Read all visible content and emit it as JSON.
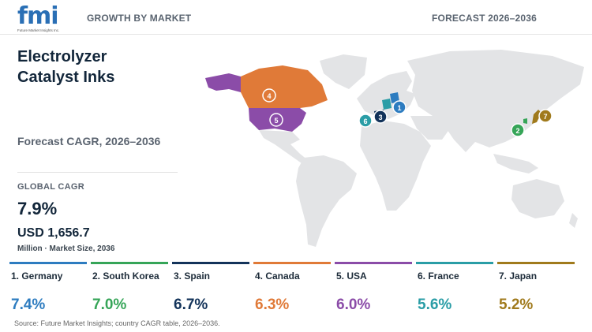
{
  "header": {
    "brand": "fmi",
    "brand_tagline": "Future Market Insights Inc.",
    "left_label": "GROWTH BY MARKET",
    "right_label": "FORECAST 2026–2036"
  },
  "panel": {
    "title_line1": "Electrolyzer",
    "title_line2": "Catalyst Inks",
    "subtitle": "Forecast CAGR, 2026–2036",
    "global_cagr_label": "GLOBAL CAGR",
    "global_cagr_value": "7.9%",
    "market_size_value": "USD 1,656.7",
    "market_size_label": "Million · Market Size, 2036"
  },
  "countries": [
    {
      "rank": "1",
      "name": "1. Germany",
      "cagr": "7.4%",
      "color": "#2d7cc0"
    },
    {
      "rank": "2",
      "name": "2. South Korea",
      "cagr": "7.0%",
      "color": "#36a558"
    },
    {
      "rank": "3",
      "name": "3. Spain",
      "cagr": "6.7%",
      "color": "#13335a"
    },
    {
      "rank": "4",
      "name": "4. Canada",
      "cagr": "6.3%",
      "color": "#e07a38"
    },
    {
      "rank": "5",
      "name": "5. USA",
      "cagr": "6.0%",
      "color": "#8b4ca8"
    },
    {
      "rank": "6",
      "name": "6. France",
      "cagr": "5.6%",
      "color": "#2a9da6"
    },
    {
      "rank": "7",
      "name": "7. Japan",
      "cagr": "5.2%",
      "color": "#a07a1c"
    }
  ],
  "source": "Source: Future Market Insights; country CAGR table, 2026–2036."
}
